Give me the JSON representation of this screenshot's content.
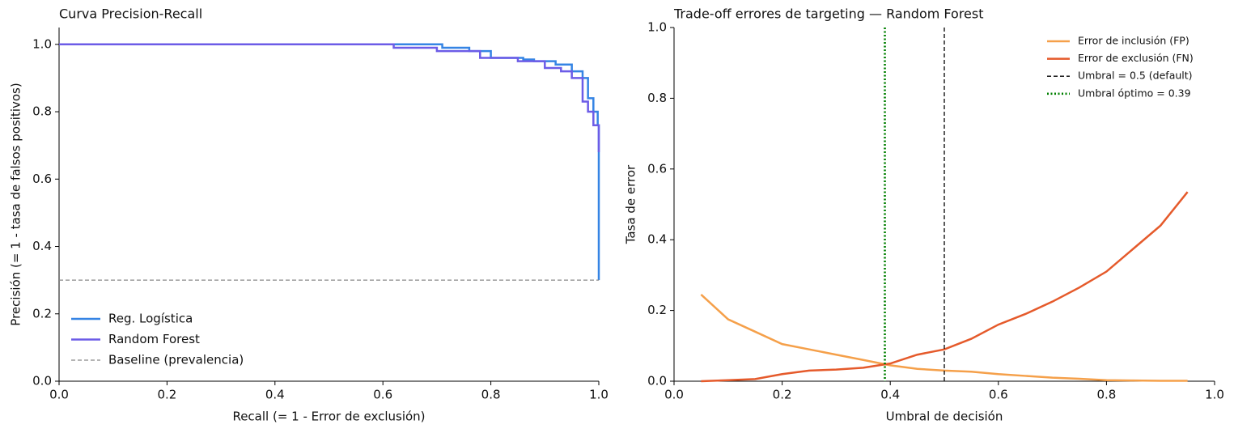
{
  "chart_data": [
    {
      "type": "line",
      "title": "Curva Precision-Recall",
      "x_label": "Recall (= 1 - Error de exclusión)",
      "y_label": "Precisión (= 1 - tasa de falsos positivos)",
      "xlim": [
        0,
        1
      ],
      "ylim": [
        0,
        1.05
      ],
      "xticks": [
        {
          "value": 0,
          "label": "0.0"
        },
        0.2,
        0.4,
        0.6,
        0.8,
        {
          "value": 1,
          "label": "1.0"
        }
      ],
      "yticks": [
        {
          "value": 0,
          "label": "0.0"
        },
        0.2,
        0.4,
        0.6,
        0.8,
        {
          "value": 1,
          "label": "1.0"
        }
      ],
      "legend": "lower left",
      "series": [
        {
          "name": "Reg. Logística",
          "color": "#3584e4",
          "style": "solid",
          "x": [
            0,
            0.71,
            0.71,
            0.76,
            0.76,
            0.8,
            0.8,
            0.86,
            0.86,
            0.88,
            0.88,
            0.92,
            0.92,
            0.95,
            0.95,
            0.97,
            0.97,
            0.98,
            0.98,
            0.99,
            0.99,
            0.998,
            0.998,
            1,
            1
          ],
          "values": [
            1,
            1,
            0.99,
            0.99,
            0.98,
            0.98,
            0.96,
            0.96,
            0.955,
            0.955,
            0.95,
            0.95,
            0.94,
            0.94,
            0.92,
            0.92,
            0.9,
            0.9,
            0.84,
            0.84,
            0.8,
            0.8,
            0.76,
            0.76,
            0.3
          ]
        },
        {
          "name": "Random Forest",
          "color": "#6c5ce7",
          "style": "solid",
          "x": [
            0,
            0.62,
            0.62,
            0.7,
            0.7,
            0.78,
            0.78,
            0.85,
            0.85,
            0.9,
            0.9,
            0.93,
            0.93,
            0.95,
            0.95,
            0.97,
            0.97,
            0.98,
            0.98,
            0.99,
            0.99,
            1,
            1
          ],
          "values": [
            1,
            1,
            0.99,
            0.99,
            0.98,
            0.98,
            0.96,
            0.96,
            0.95,
            0.95,
            0.93,
            0.93,
            0.92,
            0.92,
            0.9,
            0.9,
            0.83,
            0.83,
            0.8,
            0.8,
            0.76,
            0.76,
            0.68
          ]
        },
        {
          "name": "Baseline (prevalencia)",
          "color": "#888888",
          "style": "dashed",
          "x": [
            0,
            1
          ],
          "values": [
            0.3,
            0.3
          ]
        }
      ]
    },
    {
      "type": "line",
      "title": "Trade-off errores de targeting — Random Forest",
      "x_label": "Umbral de decisión",
      "y_label": "Tasa de error",
      "xlim": [
        0,
        1
      ],
      "ylim": [
        0,
        1
      ],
      "xticks": [
        {
          "value": 0,
          "label": "0.0"
        },
        0.2,
        0.4,
        0.6,
        0.8,
        {
          "value": 1,
          "label": "1.0"
        }
      ],
      "yticks": [
        {
          "value": 0,
          "label": "0.0"
        },
        0.2,
        0.4,
        0.6,
        0.8,
        {
          "value": 1,
          "label": "1.0"
        }
      ],
      "legend": "upper right",
      "series": [
        {
          "name": "Error de inclusión (FP)",
          "color": "#f5a04a",
          "style": "solid",
          "x": [
            0.05,
            0.1,
            0.15,
            0.2,
            0.25,
            0.3,
            0.35,
            0.4,
            0.45,
            0.5,
            0.55,
            0.6,
            0.65,
            0.7,
            0.75,
            0.8,
            0.85,
            0.9,
            0.95
          ],
          "values": [
            0.245,
            0.175,
            0.14,
            0.105,
            0.09,
            0.075,
            0.06,
            0.045,
            0.035,
            0.03,
            0.027,
            0.02,
            0.015,
            0.01,
            0.007,
            0.003,
            0.002,
            0.001,
            0.001
          ]
        },
        {
          "name": "Error de exclusión (FN)",
          "color": "#e55a2b",
          "style": "solid",
          "x": [
            0.05,
            0.1,
            0.15,
            0.2,
            0.25,
            0.3,
            0.35,
            0.4,
            0.45,
            0.5,
            0.55,
            0.6,
            0.65,
            0.7,
            0.75,
            0.8,
            0.85,
            0.9,
            0.95
          ],
          "values": [
            0,
            0.003,
            0.006,
            0.02,
            0.03,
            0.033,
            0.038,
            0.05,
            0.075,
            0.09,
            0.12,
            0.16,
            0.19,
            0.225,
            0.265,
            0.31,
            0.375,
            0.44,
            0.535
          ]
        }
      ],
      "vlines": [
        {
          "name": "Umbral = 0.5 (default)",
          "x": 0.5,
          "color": "#000000",
          "style": "dashed"
        },
        {
          "name": "Umbral óptimo = 0.39",
          "x": 0.39,
          "color": "#008000",
          "style": "dotted"
        }
      ]
    }
  ]
}
